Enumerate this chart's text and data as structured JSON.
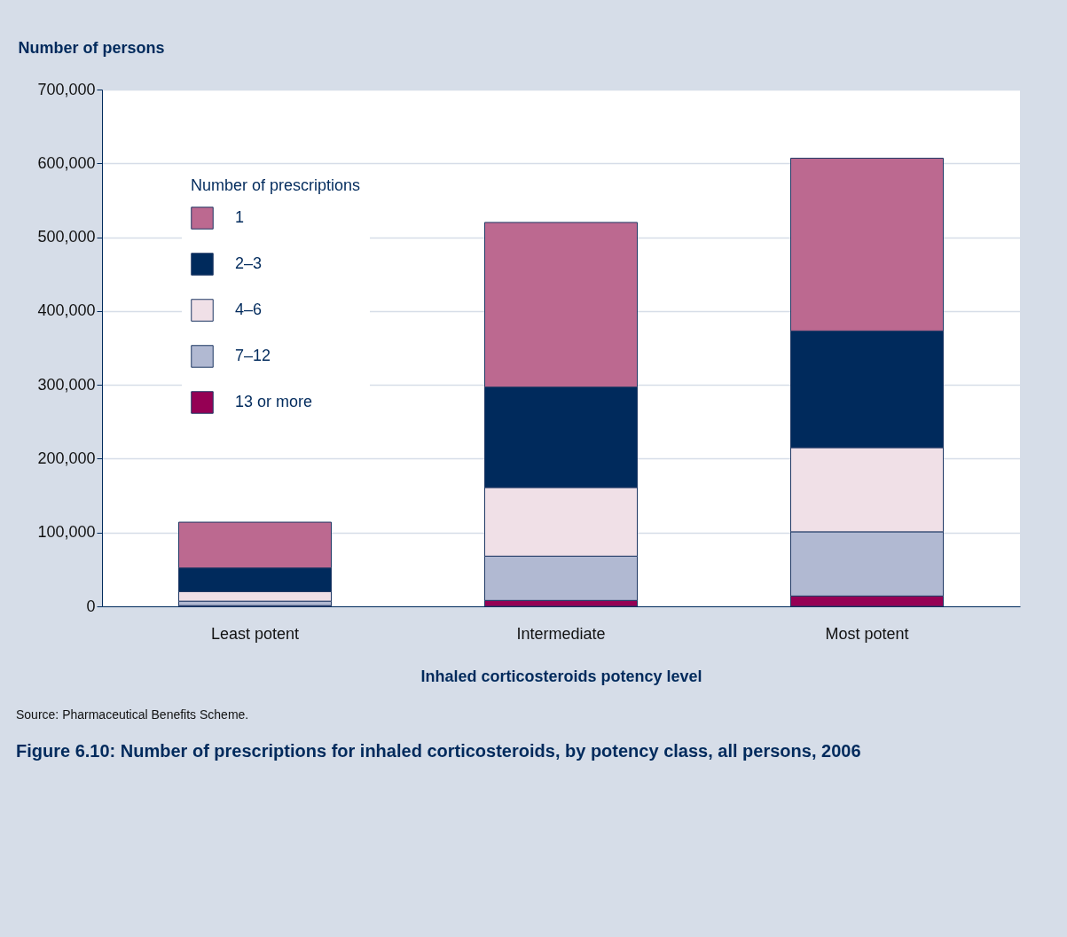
{
  "chart_data": {
    "type": "bar",
    "stacked": true,
    "title": "Figure 6.10: Number of prescriptions for inhaled corticosteroids, by potency class, all persons, 2006",
    "xlabel": "Inhaled corticosteroids potency level",
    "ylabel": "Number of persons",
    "legend_title": "Number of prescriptions",
    "categories": [
      "Least potent",
      "Intermediate",
      "Most potent"
    ],
    "series": [
      {
        "name": "13 or more",
        "color": "#950054",
        "values": [
          1000,
          8000,
          14000
        ]
      },
      {
        "name": "7–12",
        "color": "#b1b9d2",
        "values": [
          6000,
          60000,
          87000
        ]
      },
      {
        "name": "4–6",
        "color": "#f0e0e7",
        "values": [
          13000,
          93000,
          114000
        ]
      },
      {
        "name": "2–3",
        "color": "#002a5c",
        "values": [
          32000,
          136000,
          158000
        ]
      },
      {
        "name": "1",
        "color": "#bc6990",
        "values": [
          62000,
          223000,
          234000
        ]
      }
    ],
    "ylim": [
      0,
      700000
    ],
    "yticks": [
      0,
      {
        "value": 100000,
        "label": "100,000"
      },
      {
        "value": 200000,
        "label": "200,000"
      },
      {
        "value": 300000,
        "label": "300,000"
      },
      {
        "value": 400000,
        "label": "400,000"
      },
      {
        "value": 500000,
        "label": "500,000"
      },
      {
        "value": 600000,
        "label": "600,000"
      },
      {
        "value": 700000,
        "label": "700,000"
      }
    ],
    "grid": "y",
    "legend": "top left",
    "annotations": [
      "Source: Pharmaceutical Benefits Scheme."
    ]
  }
}
